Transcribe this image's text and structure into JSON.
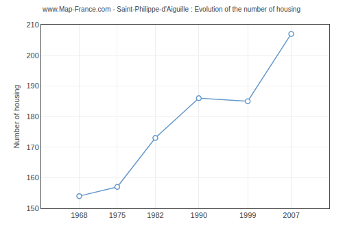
{
  "chart_data": {
    "type": "line",
    "title": "www.Map-France.com - Saint-Philippe-d'Aiguille : Evolution of the number of housing",
    "ylabel": "Number of housing",
    "x": [
      1968,
      1975,
      1982,
      1990,
      1999,
      2007
    ],
    "values": [
      154,
      157,
      173,
      186,
      185,
      207
    ],
    "color": "#6699cc",
    "marker": "circle",
    "xlim": [
      1961,
      2014
    ],
    "xticks": [
      1968,
      1975,
      1982,
      1990,
      1999,
      2007
    ],
    "ylim": [
      150,
      210
    ],
    "yticks": [
      150,
      160,
      170,
      180,
      190,
      200,
      210
    ],
    "grid": true
  }
}
